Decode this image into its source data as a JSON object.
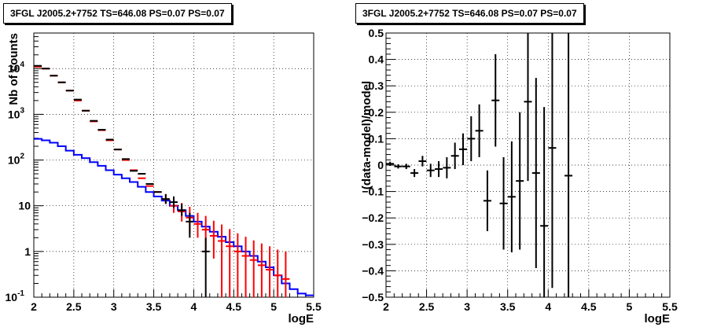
{
  "chart_data": [
    {
      "type": "line",
      "title": "3FGL J2005.2+7752 TS=646.08 PS=0.07 PS=0.07",
      "xlabel": "logE",
      "ylabel": "Nb of counts",
      "xlim": [
        2,
        5.5
      ],
      "ylim": [
        0.1,
        60000
      ],
      "yscale": "log",
      "grid": true,
      "x_ticks": [
        "2",
        "2.5",
        "3",
        "3.5",
        "4",
        "4.5",
        "5",
        "5.5"
      ],
      "y_ticks": [
        "10^-1",
        "1",
        "10",
        "10^2",
        "10^3",
        "10^4"
      ],
      "series": [
        {
          "color": "#0000ff",
          "style": "step",
          "x": [
            2.0,
            2.1,
            2.2,
            2.3,
            2.4,
            2.5,
            2.6,
            2.7,
            2.8,
            2.9,
            3.0,
            3.1,
            3.2,
            3.3,
            3.4,
            3.5,
            3.6,
            3.7,
            3.8,
            3.9,
            4.0,
            4.1,
            4.2,
            4.3,
            4.4,
            4.5,
            4.6,
            4.7,
            4.8,
            4.9,
            5.0,
            5.1,
            5.2,
            5.3,
            5.4,
            5.5
          ],
          "y": [
            290,
            270,
            240,
            200,
            160,
            130,
            110,
            90,
            75,
            60,
            48,
            40,
            33,
            26,
            20,
            16,
            13,
            10,
            8,
            6,
            4.5,
            3.5,
            2.7,
            2.1,
            1.6,
            1.3,
            1.0,
            0.8,
            0.6,
            0.45,
            0.3,
            0.2,
            0.15,
            0.12,
            0.11,
            0.1
          ]
        },
        {
          "color": "#ff0000",
          "style": "points-errorbars",
          "x": [
            2.05,
            2.15,
            2.25,
            2.35,
            2.45,
            2.55,
            2.65,
            2.75,
            2.85,
            2.95,
            3.05,
            3.15,
            3.25,
            3.35,
            3.45,
            3.55,
            3.65,
            3.75,
            3.85,
            3.95,
            4.05,
            4.15,
            4.25,
            4.35,
            4.45,
            4.55,
            4.65,
            4.75,
            4.85,
            4.95,
            5.05,
            5.15
          ],
          "y": [
            11000,
            10000,
            7000,
            5000,
            3300,
            2000,
            1200,
            700,
            450,
            270,
            170,
            100,
            60,
            40,
            27,
            20,
            14,
            10,
            7.5,
            5.5,
            4.0,
            3.0,
            2.2,
            1.7,
            1.3,
            1.0,
            0.8,
            0.65,
            0.5,
            0.4,
            0.3,
            0.25
          ],
          "yerr_low": [
            0,
            0,
            0,
            0,
            0,
            0,
            0,
            0,
            0,
            0,
            0,
            0,
            0,
            0,
            0,
            0,
            3,
            3,
            3,
            3,
            2.0,
            2.0,
            1.5,
            1.6,
            1.25,
            0.98,
            0.78,
            0.64,
            0.49,
            0.39,
            0.29,
            0.24
          ],
          "yerr_high": [
            0,
            0,
            0,
            0,
            0,
            0,
            0,
            0,
            0,
            0,
            0,
            0,
            0,
            0,
            0,
            0,
            4,
            4,
            4,
            4,
            3.0,
            3.0,
            2.5,
            2.2,
            1.8,
            1.5,
            1.3,
            1.1,
            1.0,
            0.9,
            0.8,
            0.75
          ]
        },
        {
          "color": "#000000",
          "style": "points-errorbars",
          "x": [
            2.05,
            2.15,
            2.25,
            2.35,
            2.45,
            2.55,
            2.65,
            2.75,
            2.85,
            2.95,
            3.05,
            3.15,
            3.25,
            3.35,
            3.45,
            3.55,
            3.65,
            3.75,
            3.85,
            3.95,
            4.15
          ],
          "y": [
            11500,
            10000,
            7000,
            5000,
            3300,
            2100,
            1200,
            720,
            460,
            280,
            170,
            105,
            58,
            50,
            30,
            20,
            14,
            12,
            8,
            4.5,
            1.0
          ],
          "yerr_low": [
            0,
            0,
            0,
            0,
            0,
            0,
            0,
            0,
            0,
            0,
            0,
            0,
            0,
            0,
            0,
            0,
            3,
            3,
            2,
            2.5,
            0.9
          ],
          "yerr_high": [
            0,
            0,
            0,
            0,
            0,
            0,
            0,
            0,
            0,
            0,
            0,
            0,
            0,
            0,
            0,
            0,
            4,
            4,
            3,
            2.5,
            1.0
          ]
        }
      ]
    },
    {
      "type": "scatter",
      "title": "3FGL J2005.2+7752 TS=646.08 PS=0.07 PS=0.07",
      "xlabel": "logE",
      "ylabel": "(data-model)/model",
      "xlim": [
        2,
        5.5
      ],
      "ylim": [
        -0.5,
        0.5
      ],
      "grid": true,
      "x_ticks": [
        "2",
        "2.5",
        "3",
        "3.5",
        "4",
        "4.5",
        "5",
        "5.5"
      ],
      "y_ticks": [
        "−0.5",
        "−0.4",
        "−0.3",
        "−0.2",
        "−0.1",
        "0",
        "0.1",
        "0.2",
        "0.3",
        "0.4",
        "0.5"
      ],
      "series": [
        {
          "color": "#000000",
          "style": "points-errorbars",
          "x": [
            2.05,
            2.15,
            2.25,
            2.35,
            2.45,
            2.55,
            2.65,
            2.75,
            2.85,
            2.95,
            3.05,
            3.15,
            3.25,
            3.35,
            3.45,
            3.55,
            3.65,
            3.75,
            3.85,
            3.95,
            4.05,
            4.25
          ],
          "y": [
            0.005,
            -0.005,
            -0.005,
            -0.03,
            0.015,
            -0.02,
            -0.015,
            -0.01,
            0.035,
            0.06,
            0.1,
            0.13,
            -0.135,
            0.245,
            -0.145,
            -0.12,
            -0.06,
            0.24,
            -0.03,
            -0.23,
            0.065,
            -0.04
          ],
          "yerr": [
            0.008,
            0.008,
            0.01,
            0.015,
            0.02,
            0.025,
            0.03,
            0.04,
            0.05,
            0.06,
            0.085,
            0.1,
            0.115,
            0.175,
            0.175,
            0.21,
            0.26,
            0.3,
            0.36,
            0.45,
            0.53,
            0.65
          ]
        }
      ]
    }
  ]
}
